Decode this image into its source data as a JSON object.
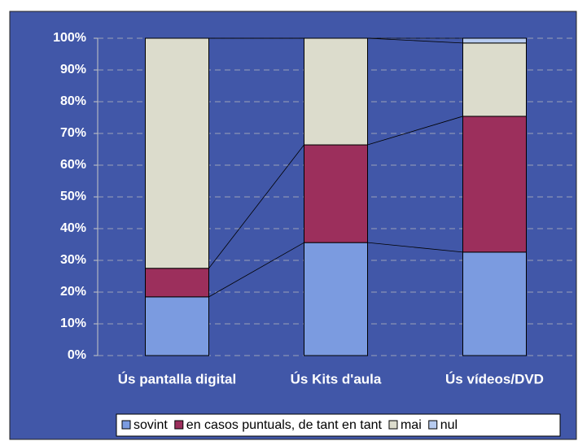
{
  "chart_data": {
    "type": "stacked_bar_100",
    "categories": [
      "Ús pantalla digital",
      "Ús Kits d'aula",
      "Ús vídeos/DVD"
    ],
    "series": [
      {
        "name": "sovint",
        "color": "#7b9be0",
        "values": [
          18.5,
          35.6,
          32.6
        ]
      },
      {
        "name": "en casos puntuals, de tant en tant",
        "color": "#9c2f5c",
        "values": [
          9,
          30.8,
          42.8
        ]
      },
      {
        "name": "mai",
        "color": "#dcdccc",
        "values": [
          72.5,
          33.6,
          23.1
        ]
      },
      {
        "name": "nul",
        "color": "#b8ccf0",
        "values": [
          0,
          0,
          1.5
        ]
      }
    ],
    "ylim": [
      0,
      100
    ],
    "yticks": [
      {
        "value": 0,
        "label": "0%"
      },
      {
        "value": 10,
        "label": "10%"
      },
      {
        "value": 20,
        "label": "20%"
      },
      {
        "value": 30,
        "label": "30%"
      },
      {
        "value": 40,
        "label": "40%"
      },
      {
        "value": 50,
        "label": "50%"
      },
      {
        "value": 60,
        "label": "60%"
      },
      {
        "value": 70,
        "label": "70%"
      },
      {
        "value": 80,
        "label": "80%"
      },
      {
        "value": 90,
        "label": "90%"
      },
      {
        "value": 100,
        "label": "100%"
      }
    ],
    "grid": true,
    "legend": "bottom"
  }
}
